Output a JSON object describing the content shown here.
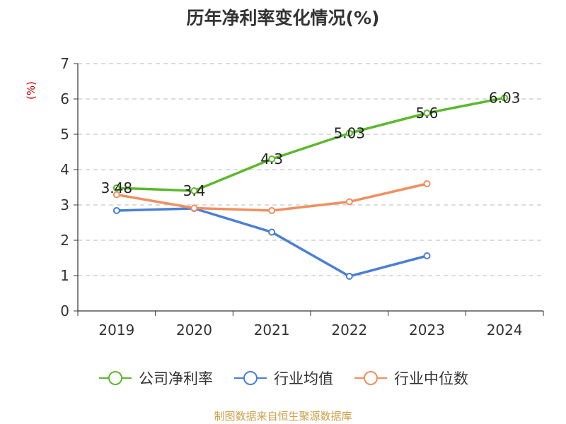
{
  "chart_data": {
    "type": "line",
    "title": "历年净利率变化情况(%)",
    "ylabel": "(%)",
    "xlabel": "",
    "categories": [
      "2019",
      "2020",
      "2021",
      "2022",
      "2023",
      "2024"
    ],
    "ylim": [
      0,
      7
    ],
    "yticks": [
      0,
      1,
      2,
      3,
      4,
      5,
      6,
      7
    ],
    "grid": true,
    "legend_position": "bottom",
    "series": [
      {
        "name": "公司净利率",
        "color": "#5cb82e",
        "values": [
          3.48,
          3.4,
          4.3,
          5.03,
          5.6,
          6.03
        ],
        "show_labels": true
      },
      {
        "name": "行业均值",
        "color": "#4a7fd4",
        "values": [
          2.84,
          2.9,
          2.23,
          0.98,
          1.56,
          null
        ],
        "show_labels": false
      },
      {
        "name": "行业中位数",
        "color": "#f08f5e",
        "values": [
          3.29,
          2.91,
          2.84,
          3.09,
          3.6,
          null
        ],
        "show_labels": false
      }
    ]
  },
  "source": "制图数据来自恒生聚源数据库"
}
